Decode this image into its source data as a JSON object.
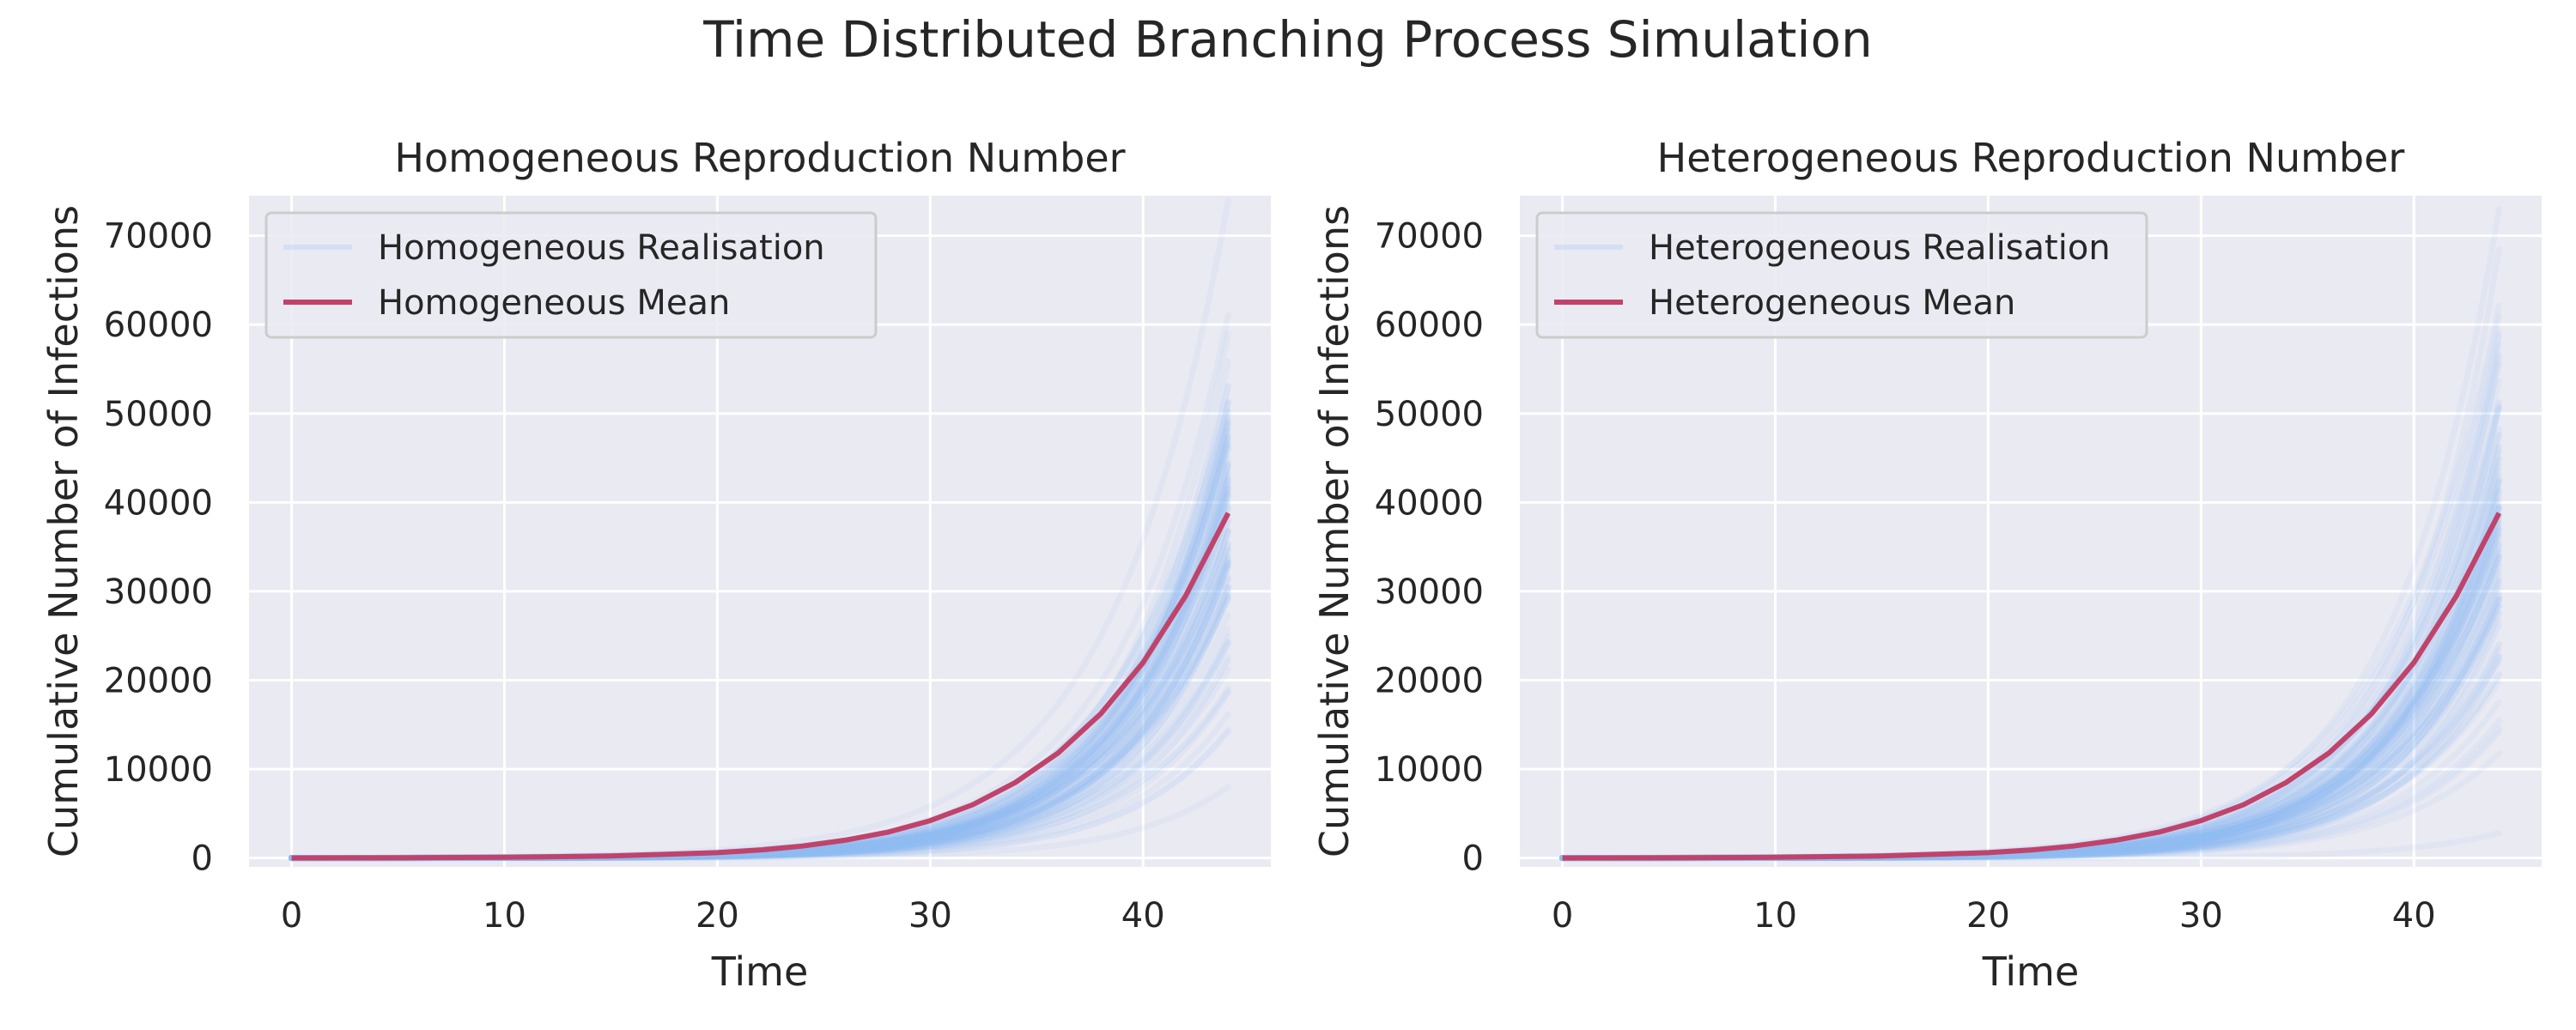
{
  "figure": {
    "title": "Time Distributed Branching Process Simulation"
  },
  "colors": {
    "realisation": "#94c0f5",
    "mean": "#c0436b",
    "plot_bg": "#eaeaf2",
    "grid": "#ffffff",
    "text": "#262626"
  },
  "chart_data": [
    {
      "type": "line",
      "title": "Homogeneous Reproduction Number",
      "xlabel": "Time",
      "ylabel": "Cumulative Number of Infections",
      "xlim": [
        -2,
        46
      ],
      "ylim": [
        -1000,
        74500
      ],
      "xticks": [
        "0",
        "10",
        "20",
        "30",
        "40"
      ],
      "yticks": [
        "0",
        "10000",
        "20000",
        "30000",
        "40000",
        "50000",
        "60000",
        "70000"
      ],
      "grid": true,
      "legend_position": "top-left",
      "series": [
        {
          "name": "Homogeneous Realisation",
          "style": "realisations",
          "x": [
            0,
            44
          ],
          "count": 100,
          "final_range": [
            8000,
            74000
          ]
        },
        {
          "name": "Homogeneous Mean",
          "style": "mean",
          "x": [
            0,
            5,
            10,
            15,
            20,
            22,
            24,
            26,
            28,
            30,
            32,
            34,
            36,
            38,
            40,
            42,
            44
          ],
          "values": [
            1,
            20,
            80,
            230,
            600,
            900,
            1350,
            2000,
            2900,
            4200,
            6000,
            8500,
            11800,
            16200,
            22000,
            29500,
            38800
          ]
        }
      ]
    },
    {
      "type": "line",
      "title": "Heterogeneous Reproduction Number",
      "xlabel": "Time",
      "ylabel": "Cumulative Number of Infections",
      "xlim": [
        -2,
        46
      ],
      "ylim": [
        -1000,
        74500
      ],
      "xticks": [
        "0",
        "10",
        "20",
        "30",
        "40"
      ],
      "yticks": [
        "0",
        "10000",
        "20000",
        "30000",
        "40000",
        "50000",
        "60000",
        "70000"
      ],
      "grid": true,
      "legend_position": "top-left",
      "series": [
        {
          "name": "Heterogeneous Realisation",
          "style": "realisations",
          "x": [
            0,
            44
          ],
          "count": 100,
          "final_range": [
            2800,
            73000
          ]
        },
        {
          "name": "Heterogeneous Mean",
          "style": "mean",
          "x": [
            0,
            5,
            10,
            15,
            20,
            22,
            24,
            26,
            28,
            30,
            32,
            34,
            36,
            38,
            40,
            42,
            44
          ],
          "values": [
            1,
            20,
            80,
            230,
            600,
            900,
            1350,
            2000,
            2900,
            4200,
            6000,
            8500,
            11800,
            16200,
            22000,
            29500,
            38800
          ]
        }
      ]
    }
  ]
}
